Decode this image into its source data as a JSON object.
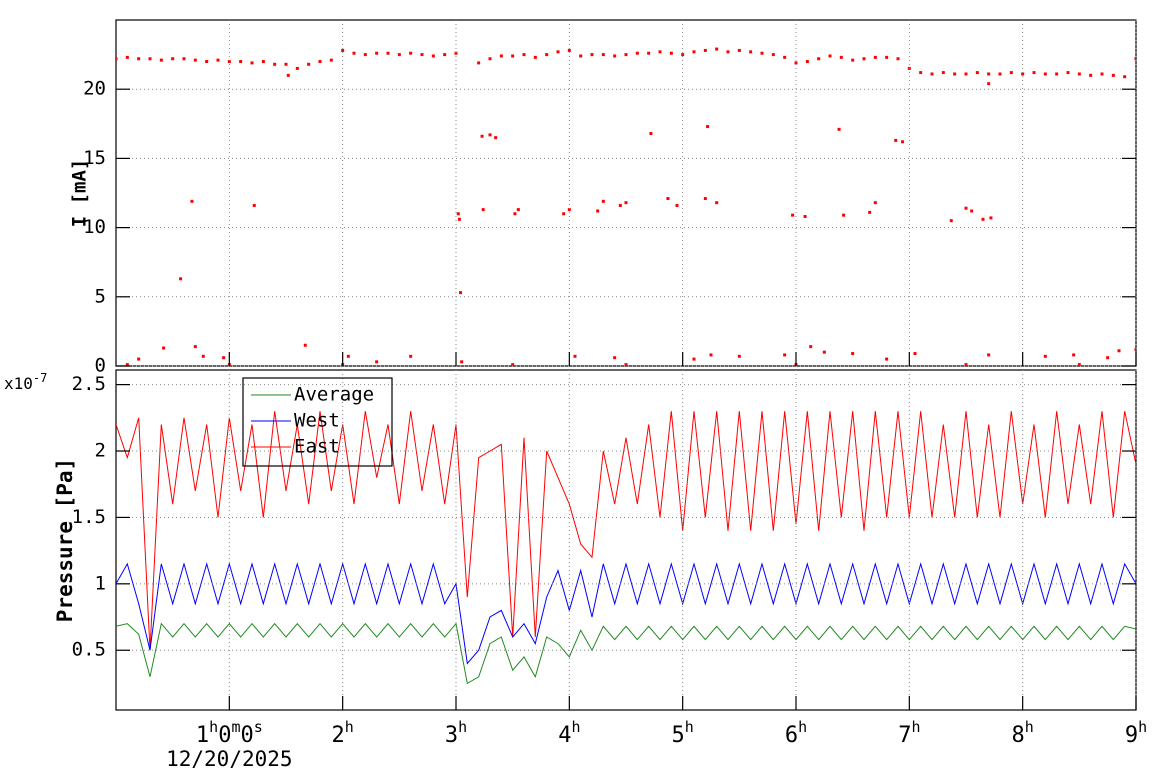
{
  "chart_data": [
    {
      "type": "scatter",
      "ylabel": "I [mA]",
      "color": "#ff0000",
      "grid": true,
      "xlim": [
        0,
        9
      ],
      "xticks": [
        1,
        2,
        3,
        4,
        5,
        6,
        7,
        8,
        9
      ],
      "ylim": [
        0,
        25
      ],
      "yticks": [
        0,
        5,
        10,
        15,
        20
      ],
      "x": [
        0.0,
        0.1,
        0.2,
        0.3,
        0.4,
        0.5,
        0.6,
        0.7,
        0.8,
        0.9,
        1.0,
        1.1,
        1.2,
        1.3,
        1.4,
        1.5,
        1.6,
        1.7,
        1.8,
        1.9,
        2.0,
        2.1,
        2.2,
        2.3,
        2.4,
        2.5,
        2.6,
        2.7,
        2.8,
        2.9,
        3.0,
        3.2,
        3.3,
        3.4,
        3.5,
        3.6,
        3.7,
        3.8,
        3.9,
        4.0,
        4.1,
        4.2,
        4.3,
        4.4,
        4.5,
        4.6,
        4.7,
        4.8,
        4.9,
        5.0,
        5.1,
        5.2,
        5.3,
        5.4,
        5.5,
        5.6,
        5.7,
        5.8,
        5.9,
        6.0,
        6.1,
        6.2,
        6.3,
        6.4,
        6.5,
        6.6,
        6.7,
        6.8,
        6.9,
        7.0,
        7.1,
        7.2,
        7.3,
        7.4,
        7.5,
        7.6,
        7.7,
        7.8,
        7.9,
        8.0,
        8.1,
        8.2,
        8.3,
        8.4,
        8.5,
        8.6,
        8.7,
        8.8,
        8.9,
        9.0,
        0.57,
        0.67,
        1.22,
        1.52,
        3.02,
        3.03,
        3.04,
        3.23,
        3.3,
        3.35,
        3.24,
        3.52,
        3.55,
        3.95,
        4.0,
        4.25,
        4.3,
        4.45,
        4.5,
        4.72,
        4.87,
        4.95,
        5.22,
        5.2,
        5.3,
        5.97,
        6.08,
        6.38,
        6.42,
        6.65,
        6.7,
        6.88,
        6.94,
        7.37,
        7.5,
        7.55,
        7.65,
        7.72,
        7.7,
        0.2,
        0.42,
        0.7,
        0.77,
        0.95,
        1.67,
        2.05,
        2.3,
        2.6,
        3.05,
        4.05,
        4.4,
        5.1,
        5.25,
        5.5,
        5.9,
        6.13,
        6.25,
        6.5,
        6.8,
        7.05,
        7.7,
        8.2,
        8.45,
        8.75,
        8.85,
        9.0,
        0.1,
        1.0,
        2.0,
        3.5,
        4.5,
        6.0,
        7.5,
        8.5
      ],
      "values": [
        22.2,
        22.3,
        22.2,
        22.2,
        22.1,
        22.2,
        22.2,
        22.1,
        22.0,
        22.1,
        22.0,
        22.0,
        21.9,
        22.0,
        21.8,
        21.8,
        21.5,
        21.8,
        22.0,
        22.1,
        22.8,
        22.6,
        22.5,
        22.6,
        22.6,
        22.5,
        22.6,
        22.5,
        22.4,
        22.5,
        22.6,
        21.9,
        22.2,
        22.4,
        22.4,
        22.5,
        22.3,
        22.5,
        22.7,
        22.8,
        22.4,
        22.5,
        22.5,
        22.4,
        22.5,
        22.6,
        22.6,
        22.7,
        22.6,
        22.5,
        22.7,
        22.8,
        22.9,
        22.7,
        22.8,
        22.7,
        22.6,
        22.5,
        22.3,
        21.9,
        22.0,
        22.2,
        22.4,
        22.3,
        22.1,
        22.2,
        22.3,
        22.3,
        22.2,
        21.5,
        21.2,
        21.1,
        21.2,
        21.1,
        21.1,
        21.2,
        21.1,
        21.1,
        21.2,
        21.1,
        21.2,
        21.1,
        21.1,
        21.2,
        21.1,
        21.0,
        21.1,
        21.0,
        20.9,
        22.2,
        6.3,
        11.9,
        11.6,
        21.0,
        11.0,
        10.6,
        5.3,
        16.6,
        16.7,
        16.5,
        11.3,
        11.0,
        11.3,
        11.0,
        11.3,
        11.2,
        11.9,
        11.6,
        11.8,
        16.8,
        12.1,
        11.6,
        17.3,
        12.1,
        11.8,
        10.9,
        10.8,
        17.1,
        10.9,
        11.1,
        11.8,
        16.3,
        16.2,
        10.5,
        11.4,
        11.2,
        10.6,
        10.7,
        20.4,
        0.5,
        1.3,
        1.4,
        0.7,
        0.6,
        1.5,
        0.7,
        0.3,
        0.7,
        0.3,
        0.7,
        0.6,
        0.5,
        0.8,
        0.7,
        0.8,
        1.4,
        1.0,
        0.9,
        0.5,
        0.9,
        0.8,
        0.7,
        0.8,
        0.6,
        1.1,
        1.2,
        0.1,
        0.1,
        0.1,
        0.1,
        0.1,
        0.1,
        0.1,
        0.1
      ]
    },
    {
      "type": "line",
      "ylabel": "Pressure [Pa]",
      "grid": true,
      "legend": "top-left",
      "y_unit_base": "x10",
      "y_unit_exponent": "-7",
      "xlim": [
        0,
        9
      ],
      "xticks": [
        {
          "value": 1,
          "label": "1h0m0s"
        },
        {
          "value": 2,
          "label": "2h"
        },
        {
          "value": 3,
          "label": "3h"
        },
        {
          "value": 4,
          "label": "4h"
        },
        {
          "value": 5,
          "label": "5h"
        },
        {
          "value": 6,
          "label": "6h"
        },
        {
          "value": 7,
          "label": "7h"
        },
        {
          "value": 8,
          "label": "8h"
        },
        {
          "value": 9,
          "label": "9h"
        }
      ],
      "x_date": "12/20/2025",
      "ylim": [
        0.05,
        2.61
      ],
      "yticks": [
        0.5,
        1,
        1.5,
        2,
        2.5
      ],
      "x": [
        0,
        0.1,
        0.2,
        0.3,
        0.4,
        0.5,
        0.6,
        0.7,
        0.8,
        0.9,
        1,
        1.1,
        1.2,
        1.3,
        1.4,
        1.5,
        1.6,
        1.7,
        1.8,
        1.9,
        2,
        2.1,
        2.2,
        2.3,
        2.4,
        2.5,
        2.6,
        2.7,
        2.8,
        2.9,
        3,
        3.1,
        3.2,
        3.3,
        3.4,
        3.5,
        3.6,
        3.7,
        3.8,
        3.9,
        4,
        4.1,
        4.2,
        4.3,
        4.4,
        4.5,
        4.6,
        4.7,
        4.8,
        4.9,
        5,
        5.1,
        5.2,
        5.3,
        5.4,
        5.5,
        5.6,
        5.7,
        5.8,
        5.9,
        6,
        6.1,
        6.2,
        6.3,
        6.4,
        6.5,
        6.6,
        6.7,
        6.8,
        6.9,
        7,
        7.1,
        7.2,
        7.3,
        7.4,
        7.5,
        7.6,
        7.7,
        7.8,
        7.9,
        8,
        8.1,
        8.2,
        8.3,
        8.4,
        8.5,
        8.6,
        8.7,
        8.8,
        8.9,
        9
      ],
      "series": [
        {
          "name": "Average",
          "color": "#228b22",
          "values": [
            0.68,
            0.7,
            0.62,
            0.3,
            0.7,
            0.6,
            0.7,
            0.6,
            0.7,
            0.6,
            0.7,
            0.6,
            0.7,
            0.6,
            0.7,
            0.6,
            0.7,
            0.6,
            0.7,
            0.6,
            0.7,
            0.6,
            0.7,
            0.6,
            0.7,
            0.6,
            0.7,
            0.6,
            0.7,
            0.6,
            0.7,
            0.25,
            0.3,
            0.55,
            0.6,
            0.35,
            0.45,
            0.3,
            0.6,
            0.55,
            0.45,
            0.65,
            0.5,
            0.68,
            0.58,
            0.68,
            0.58,
            0.68,
            0.58,
            0.68,
            0.58,
            0.68,
            0.58,
            0.68,
            0.58,
            0.68,
            0.58,
            0.68,
            0.58,
            0.68,
            0.58,
            0.68,
            0.58,
            0.68,
            0.58,
            0.68,
            0.58,
            0.68,
            0.58,
            0.68,
            0.58,
            0.68,
            0.58,
            0.68,
            0.58,
            0.68,
            0.58,
            0.68,
            0.58,
            0.68,
            0.58,
            0.68,
            0.58,
            0.68,
            0.58,
            0.68,
            0.58,
            0.68,
            0.58,
            0.68,
            0.66
          ]
        },
        {
          "name": "West",
          "color": "#0000ff",
          "values": [
            1.0,
            1.15,
            0.85,
            0.5,
            1.15,
            0.85,
            1.15,
            0.85,
            1.15,
            0.85,
            1.15,
            0.85,
            1.15,
            0.85,
            1.15,
            0.85,
            1.15,
            0.85,
            1.15,
            0.85,
            1.15,
            0.85,
            1.15,
            0.85,
            1.15,
            0.85,
            1.15,
            0.85,
            1.15,
            0.85,
            1.0,
            0.4,
            0.5,
            0.75,
            0.8,
            0.6,
            0.7,
            0.55,
            0.9,
            1.1,
            0.8,
            1.1,
            0.75,
            1.15,
            0.85,
            1.15,
            0.85,
            1.15,
            0.85,
            1.15,
            0.85,
            1.15,
            0.85,
            1.15,
            0.85,
            1.15,
            0.85,
            1.15,
            0.85,
            1.15,
            0.85,
            1.15,
            0.85,
            1.15,
            0.85,
            1.15,
            0.85,
            1.15,
            0.85,
            1.15,
            0.85,
            1.15,
            0.85,
            1.15,
            0.85,
            1.15,
            0.85,
            1.15,
            0.85,
            1.15,
            0.85,
            1.15,
            0.85,
            1.15,
            0.85,
            1.15,
            0.85,
            1.15,
            0.85,
            1.15,
            1.0
          ]
        },
        {
          "name": "East",
          "color": "#ff0000",
          "values": [
            2.2,
            1.95,
            2.25,
            0.5,
            2.2,
            1.6,
            2.25,
            1.7,
            2.2,
            1.5,
            2.25,
            1.7,
            2.2,
            1.5,
            2.3,
            1.7,
            2.2,
            1.6,
            2.3,
            1.7,
            2.2,
            1.6,
            2.3,
            1.8,
            2.2,
            1.6,
            2.3,
            1.7,
            2.2,
            1.6,
            2.2,
            0.9,
            1.95,
            2.0,
            2.05,
            0.6,
            2.1,
            0.6,
            2.0,
            1.8,
            1.6,
            1.3,
            1.2,
            2.0,
            1.6,
            2.1,
            1.6,
            2.2,
            1.5,
            2.3,
            1.4,
            2.3,
            1.5,
            2.3,
            1.4,
            2.3,
            1.4,
            2.3,
            1.4,
            2.3,
            1.45,
            2.3,
            1.4,
            2.3,
            1.5,
            2.3,
            1.4,
            2.3,
            1.5,
            2.3,
            1.5,
            2.3,
            1.5,
            2.2,
            1.5,
            2.3,
            1.5,
            2.2,
            1.5,
            2.3,
            1.6,
            2.2,
            1.5,
            2.3,
            1.6,
            2.2,
            1.6,
            2.3,
            1.5,
            2.3,
            1.9
          ]
        }
      ]
    }
  ]
}
